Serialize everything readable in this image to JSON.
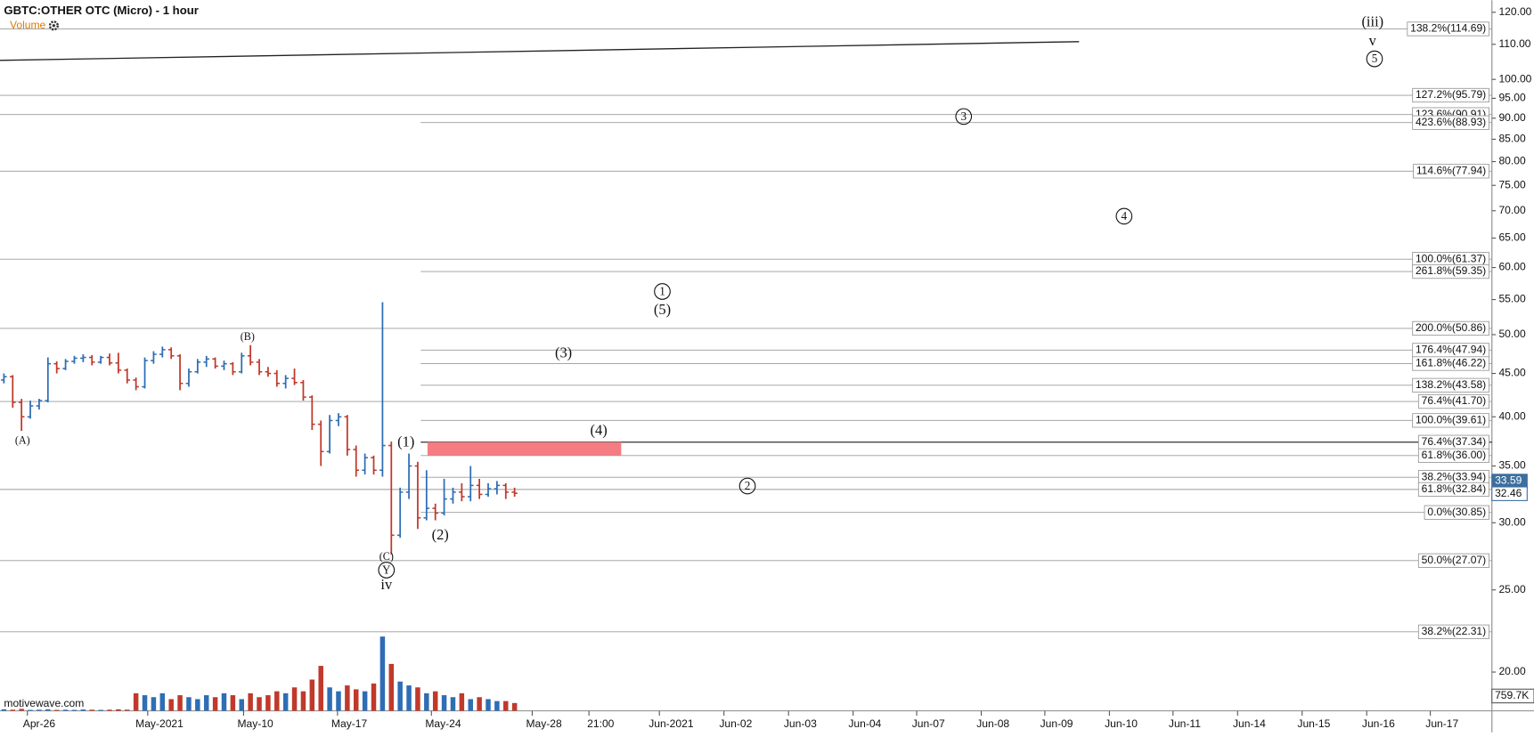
{
  "chart_data": {
    "type": "ohlc",
    "title": "GBTC:OTHER OTC (Micro) - 1 hour",
    "volume_title": "Volume",
    "watermark": "motivewave.com",
    "log_scale": true,
    "ylim": [
      18,
      124
    ],
    "yticks": [
      {
        "value": 120,
        "label": "120.00"
      },
      {
        "value": 110,
        "label": "110.00"
      },
      {
        "value": 100,
        "label": "100.00"
      },
      {
        "value": 95,
        "label": "95.00"
      },
      {
        "value": 90,
        "label": "90.00"
      },
      {
        "value": 85,
        "label": "85.00"
      },
      {
        "value": 80,
        "label": "80.00"
      },
      {
        "value": 75,
        "label": "75.00"
      },
      {
        "value": 70,
        "label": "70.00"
      },
      {
        "value": 65,
        "label": "65.00"
      },
      {
        "value": 60,
        "label": "60.00"
      },
      {
        "value": 55,
        "label": "55.00"
      },
      {
        "value": 50,
        "label": "50.00"
      },
      {
        "value": 45,
        "label": "45.00"
      },
      {
        "value": 40,
        "label": "40.00"
      },
      {
        "value": 35,
        "label": "35.00"
      },
      {
        "value": 30,
        "label": "30.00"
      },
      {
        "value": 25,
        "label": "25.00"
      },
      {
        "value": 20,
        "label": "20.00"
      }
    ],
    "categories": [
      "Apr-26",
      "May-2021",
      "May-10",
      "May-17",
      "May-24",
      "May-28",
      "21:00",
      "Jun-2021",
      "Jun-02",
      "Jun-03",
      "Jun-04",
      "Jun-07",
      "Jun-08",
      "Jun-09",
      "Jun-10",
      "Jun-11",
      "Jun-14",
      "Jun-15",
      "Jun-16",
      "Jun-17"
    ],
    "up_color": "#2f6db5",
    "down_color": "#c0392b",
    "ohlc": {
      "open": [
        44.2,
        44.6,
        41.6,
        40.0,
        41.2,
        41.8,
        46.2,
        45.6,
        46.5,
        46.9,
        47.0,
        46.4,
        47.0,
        46.3,
        45.4,
        44.2,
        43.4,
        46.6,
        47.4,
        48.0,
        47.2,
        43.8,
        45.2,
        46.4,
        46.8,
        45.9,
        46.2,
        45.2,
        47.2,
        46.4,
        45.2,
        45.0,
        43.8,
        44.4,
        43.9,
        42.2,
        39.2,
        36.4,
        39.6,
        40.0,
        36.6,
        34.6,
        35.8,
        34.6,
        37.0,
        29.0,
        32.6,
        35.0,
        30.4,
        31.2,
        30.8,
        32.0,
        32.6,
        32.2,
        33.2,
        32.4,
        32.9,
        33.2,
        32.6
      ],
      "high": [
        45.0,
        44.8,
        42.0,
        41.8,
        42.0,
        47.0,
        46.5,
        46.8,
        47.2,
        47.4,
        47.3,
        47.2,
        47.5,
        47.6,
        45.6,
        44.5,
        47.0,
        47.8,
        48.4,
        48.3,
        47.4,
        45.6,
        46.8,
        47.2,
        47.0,
        46.6,
        46.4,
        47.6,
        48.6,
        46.8,
        45.8,
        45.4,
        44.8,
        45.6,
        44.2,
        42.4,
        39.6,
        40.2,
        40.4,
        40.2,
        37.0,
        36.2,
        36.0,
        54.6,
        37.4,
        33.0,
        36.2,
        35.4,
        34.6,
        31.6,
        33.8,
        33.0,
        33.4,
        35.0,
        33.8,
        33.4,
        33.6,
        33.4,
        33.0
      ],
      "low": [
        43.8,
        41.0,
        38.5,
        39.8,
        40.8,
        41.6,
        45.0,
        45.4,
        46.2,
        46.4,
        46.0,
        46.2,
        46.0,
        45.0,
        43.8,
        43.0,
        43.2,
        46.2,
        47.0,
        46.8,
        43.0,
        43.4,
        45.0,
        45.8,
        45.6,
        45.4,
        44.8,
        45.0,
        46.0,
        44.8,
        44.6,
        43.4,
        43.2,
        43.6,
        41.8,
        38.6,
        35.0,
        36.2,
        39.0,
        36.0,
        34.0,
        34.2,
        34.2,
        34.0,
        27.5,
        28.8,
        32.0,
        29.5,
        30.2,
        30.2,
        30.6,
        31.6,
        31.8,
        31.8,
        32.0,
        32.2,
        32.4,
        32.0,
        32.2
      ],
      "close": [
        44.6,
        41.6,
        40.0,
        41.2,
        41.8,
        46.2,
        45.6,
        46.5,
        46.9,
        47.0,
        46.4,
        47.0,
        46.3,
        45.4,
        44.2,
        43.4,
        46.6,
        47.4,
        48.0,
        47.2,
        43.8,
        45.2,
        46.4,
        46.8,
        45.9,
        46.2,
        45.2,
        47.2,
        46.4,
        45.2,
        45.0,
        43.8,
        44.4,
        43.9,
        42.2,
        39.2,
        36.4,
        39.6,
        40.0,
        36.6,
        34.6,
        35.8,
        34.6,
        37.0,
        29.0,
        32.6,
        35.0,
        30.4,
        31.2,
        30.8,
        32.0,
        32.6,
        32.2,
        33.2,
        32.4,
        32.9,
        33.2,
        32.6,
        32.5
      ]
    },
    "volume": [
      80000,
      60000,
      100000,
      50000,
      60000,
      80000,
      50000,
      60000,
      50000,
      70000,
      60000,
      50000,
      60000,
      80000,
      60000,
      900000,
      800000,
      700000,
      900000,
      600000,
      800000,
      700000,
      600000,
      800000,
      700000,
      900000,
      800000,
      600000,
      900000,
      700000,
      800000,
      1000000,
      900000,
      1200000,
      1000000,
      1600000,
      2300000,
      1200000,
      1000000,
      1300000,
      1100000,
      1000000,
      1400000,
      3800000,
      2400000,
      1500000,
      1300000,
      1200000,
      900000,
      1000000,
      800000,
      700000,
      900000,
      600000,
      700000,
      600000,
      500000,
      500000,
      400000
    ],
    "volume_lim": [
      0,
      4500000
    ],
    "volume_marker": {
      "value": 759700,
      "label": "759.7K"
    },
    "levels": [
      {
        "label": "138.2%(114.69)",
        "value": 114.69
      },
      {
        "label": "127.2%(95.79)",
        "value": 95.79
      },
      {
        "label": "123.6%(90.91)",
        "value": 90.91
      },
      {
        "label": "423.6%(88.93)",
        "value": 88.93
      },
      {
        "label": "114.6%(77.94)",
        "value": 77.94
      },
      {
        "label": "100.0%(61.37)",
        "value": 61.37
      },
      {
        "label": "261.8%(59.35)",
        "value": 59.35
      },
      {
        "label": "200.0%(50.86)",
        "value": 50.86
      },
      {
        "label": "176.4%(47.94)",
        "value": 47.94
      },
      {
        "label": "161.8%(46.22)",
        "value": 46.22
      },
      {
        "label": "138.2%(43.58)",
        "value": 43.58
      },
      {
        "label": "76.4%(41.70)",
        "value": 41.7
      },
      {
        "label": "100.0%(39.61)",
        "value": 39.61
      },
      {
        "label": "76.4%(37.34)",
        "value": 37.34
      },
      {
        "label": "61.8%(36.00)",
        "value": 36.0
      },
      {
        "label": "38.2%(33.94)",
        "value": 33.94
      },
      {
        "label": "61.8%(32.84)",
        "value": 32.84
      },
      {
        "label": "0.0%(30.85)",
        "value": 30.85
      },
      {
        "label": "50.0%(27.07)",
        "value": 27.07
      },
      {
        "label": "38.2%(22.31)",
        "value": 22.31
      }
    ],
    "zone": {
      "low": 36.0,
      "high": 37.34,
      "color": "#f47c82"
    },
    "trendline": [
      105.3,
      110.8
    ],
    "price_markers": [
      {
        "value": 33.59,
        "color": "#3c6e9f"
      },
      {
        "value": 32.46,
        "color": "#ffffff"
      }
    ],
    "wave_labels": [
      {
        "text": "(A)",
        "circled": false
      },
      {
        "text": "(B)",
        "circled": false
      },
      {
        "text": "(C)",
        "circled": false
      },
      {
        "text": "Y",
        "circled": true
      },
      {
        "text": "iv",
        "circled": false
      },
      {
        "text": "(1)",
        "circled": false
      },
      {
        "text": "(2)",
        "circled": false
      },
      {
        "text": "(3)",
        "circled": false
      },
      {
        "text": "(4)",
        "circled": false
      },
      {
        "text": "1",
        "circled": true
      },
      {
        "text": "(5)",
        "circled": false
      },
      {
        "text": "2",
        "circled": true
      },
      {
        "text": "3",
        "circled": true
      },
      {
        "text": "4",
        "circled": true
      },
      {
        "text": "(iii)",
        "circled": false
      },
      {
        "text": "v",
        "circled": false
      },
      {
        "text": "5",
        "circled": true
      }
    ]
  }
}
